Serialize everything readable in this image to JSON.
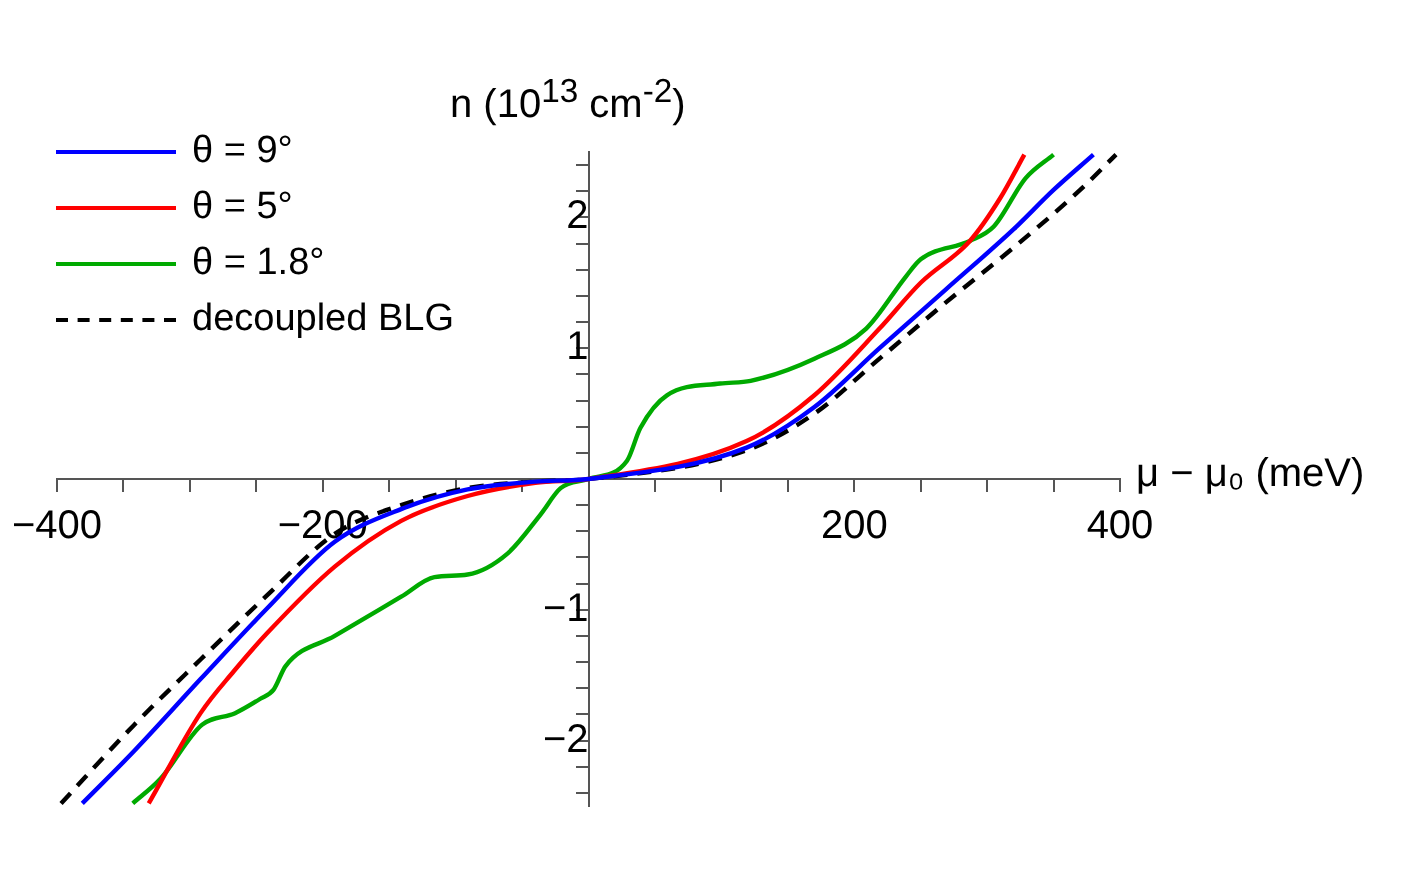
{
  "chart_data": {
    "type": "line",
    "xlabel": "μ − μ₀ (meV)",
    "ylabel": "n (10$^{13}$ cm$^{-2}$)",
    "xlim": [
      -400,
      400
    ],
    "ylim": [
      -2.5,
      2.5
    ],
    "xticks": [
      {
        "value": -400,
        "label": "−400"
      },
      {
        "value": -350,
        "label": null
      },
      {
        "value": -300,
        "label": null
      },
      {
        "value": -250,
        "label": null
      },
      {
        "value": -200,
        "label": "−200"
      },
      {
        "value": -150,
        "label": null
      },
      {
        "value": -100,
        "label": null
      },
      {
        "value": -50,
        "label": null
      },
      {
        "value": 50,
        "label": null
      },
      {
        "value": 100,
        "label": null
      },
      {
        "value": 150,
        "label": null
      },
      {
        "value": 200,
        "label": "200"
      },
      {
        "value": 250,
        "label": null
      },
      {
        "value": 300,
        "label": null
      },
      {
        "value": 350,
        "label": null
      },
      {
        "value": 400,
        "label": "400"
      }
    ],
    "yticks": [
      {
        "value": -2.4,
        "label": null
      },
      {
        "value": -2.2,
        "label": null
      },
      {
        "value": -2,
        "label": "−2"
      },
      {
        "value": -1.8,
        "label": null
      },
      {
        "value": -1.6,
        "label": null
      },
      {
        "value": -1.4,
        "label": null
      },
      {
        "value": -1.2,
        "label": null
      },
      {
        "value": -1,
        "label": "−1"
      },
      {
        "value": -0.8,
        "label": null
      },
      {
        "value": -0.6,
        "label": null
      },
      {
        "value": -0.4,
        "label": null
      },
      {
        "value": -0.2,
        "label": null
      },
      {
        "value": 0.2,
        "label": null
      },
      {
        "value": 0.4,
        "label": null
      },
      {
        "value": 0.6,
        "label": null
      },
      {
        "value": 0.8,
        "label": null
      },
      {
        "value": 1,
        "label": "1"
      },
      {
        "value": 1.2,
        "label": null
      },
      {
        "value": 1.4,
        "label": null
      },
      {
        "value": 1.6,
        "label": null
      },
      {
        "value": 1.8,
        "label": null
      },
      {
        "value": 2,
        "label": "2"
      },
      {
        "value": 2.2,
        "label": null
      },
      {
        "value": 2.4,
        "label": null
      }
    ],
    "grid": false,
    "legend": "top left",
    "marker": "none",
    "series": [
      {
        "name": "θ = 9°",
        "color": "#0000ff",
        "line_style": "solid",
        "x": [
          -381,
          -342,
          -292,
          -242,
          -191,
          -141,
          -91,
          -40,
          0,
          119,
          170,
          219,
          269,
          320,
          350,
          380
        ],
        "values": [
          -2.48,
          -2.08,
          -1.53,
          -0.99,
          -0.48,
          -0.23,
          -0.08,
          -0.02,
          0,
          0.24,
          0.55,
          1.0,
          1.45,
          1.91,
          2.21,
          2.48
        ]
      },
      {
        "name": "θ = 5°",
        "color": "#ff0000",
        "line_style": "solid",
        "x": [
          -331,
          -292,
          -267,
          -242,
          -191,
          -141,
          -91,
          -40,
          0,
          119,
          170,
          219,
          250,
          287,
          310,
          328
        ],
        "values": [
          -2.48,
          -1.79,
          -1.47,
          -1.18,
          -0.67,
          -0.32,
          -0.13,
          -0.03,
          0,
          0.29,
          0.64,
          1.15,
          1.5,
          1.82,
          2.15,
          2.48
        ]
      },
      {
        "name": "θ = 1.8°",
        "color": "#00aa00",
        "line_style": "solid",
        "x": [
          -343,
          -322,
          -291,
          -266,
          -247,
          -237,
          -228,
          -191,
          -141,
          -116,
          -91,
          -61,
          -36,
          -21,
          0,
          29,
          39,
          59,
          99,
          122,
          170,
          209,
          239,
          250,
          287,
          305,
          329,
          350
        ],
        "values": [
          -2.48,
          -2.29,
          -1.88,
          -1.79,
          -1.68,
          -1.61,
          -1.43,
          -1.2,
          -0.9,
          -0.75,
          -0.73,
          -0.57,
          -0.27,
          -0.07,
          0,
          0.14,
          0.39,
          0.64,
          0.73,
          0.75,
          0.92,
          1.15,
          1.55,
          1.68,
          1.82,
          1.93,
          2.3,
          2.48
        ]
      },
      {
        "name": "decoupled BLG",
        "color": "#000000",
        "line_style": "dashed",
        "x": [
          -397,
          -342,
          -292,
          -242,
          -191,
          -141,
          -91,
          -40,
          0,
          119,
          170,
          219,
          269,
          320,
          370,
          397
        ],
        "values": [
          -2.48,
          -1.88,
          -1.38,
          -0.89,
          -0.42,
          -0.2,
          -0.07,
          -0.02,
          0,
          0.22,
          0.5,
          0.92,
          1.35,
          1.77,
          2.21,
          2.48
        ]
      }
    ]
  }
}
